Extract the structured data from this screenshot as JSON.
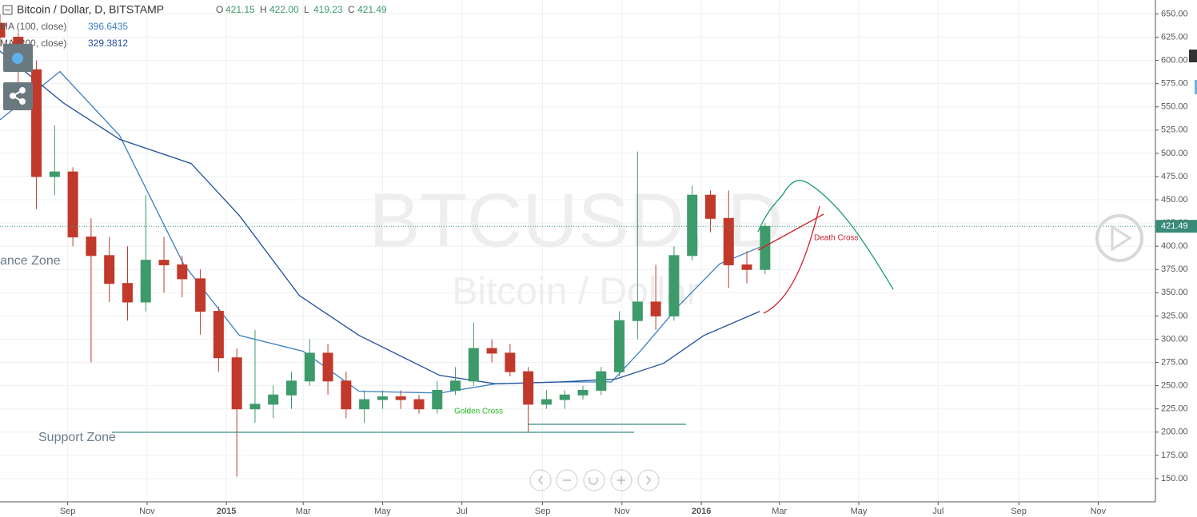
{
  "chart_data": {
    "type": "candlestick",
    "title": "Bitcoin / Dollar, D, BITSTAMP",
    "quote": {
      "labels": [
        "O",
        "H",
        "L",
        "C"
      ],
      "values": [
        421.15,
        422,
        419.23,
        421.49
      ],
      "value_labels": [
        "421.15",
        "422.00",
        "419.23",
        "421.49"
      ]
    },
    "watermark": [
      "BTCUSD, D",
      "Bitcoin / Dollar"
    ],
    "annotations": [
      "ance Zone",
      "Support Zone",
      "Golden Cross",
      "Death Cross"
    ],
    "last_price": 421.49,
    "last_price_label": "421.49",
    "up_color": "#3d9a6a",
    "down_color": "#c0392b",
    "x": [
      -21,
      -7,
      7,
      21,
      35,
      49,
      63,
      77,
      91,
      105,
      119,
      133,
      147,
      161,
      175,
      189,
      203,
      217,
      231,
      245,
      259,
      273,
      287,
      301,
      315,
      329,
      343,
      357,
      371,
      385,
      399,
      413,
      427,
      441,
      455,
      469,
      483,
      497,
      511,
      525,
      539,
      553,
      567
    ],
    "open": [
      640,
      625,
      590,
      475,
      480,
      410,
      390,
      360,
      340,
      385,
      380,
      365,
      330,
      280,
      225,
      230,
      240,
      255,
      285,
      255,
      225,
      235,
      238,
      235,
      225,
      245,
      255,
      290,
      285,
      265,
      230,
      235,
      240,
      245,
      265,
      320,
      340,
      325,
      390,
      455,
      430,
      380,
      375
    ],
    "high": [
      650,
      630,
      600,
      530,
      485,
      430,
      410,
      400,
      455,
      410,
      390,
      375,
      335,
      290,
      310,
      250,
      265,
      300,
      295,
      265,
      245,
      245,
      245,
      240,
      255,
      270,
      318,
      300,
      295,
      270,
      245,
      245,
      250,
      270,
      330,
      502,
      380,
      400,
      465,
      460,
      460,
      395,
      425
    ],
    "low": [
      615,
      575,
      440,
      455,
      400,
      275,
      340,
      320,
      330,
      350,
      345,
      305,
      265,
      152,
      210,
      215,
      225,
      250,
      240,
      215,
      210,
      225,
      225,
      220,
      220,
      240,
      250,
      275,
      260,
      200,
      225,
      225,
      235,
      240,
      260,
      300,
      310,
      320,
      385,
      415,
      355,
      360,
      370
    ],
    "close": [
      625,
      590,
      475,
      480,
      410,
      390,
      360,
      340,
      385,
      380,
      365,
      330,
      280,
      225,
      230,
      240,
      255,
      285,
      255,
      225,
      235,
      238,
      235,
      225,
      245,
      255,
      290,
      285,
      265,
      230,
      235,
      240,
      245,
      265,
      320,
      340,
      325,
      390,
      455,
      430,
      380,
      375,
      421.49
    ],
    "series": [
      {
        "name": "MA (100, close)",
        "color": "#3a7fc1",
        "last": 396.6435,
        "x": [
          -21,
          25,
          71,
          120,
          163,
          212,
          255,
          317,
          360,
          409,
          449,
          471,
          502,
          532,
          563
        ],
        "values": [
          536,
          588,
          519,
          381,
          304,
          287,
          244,
          242,
          252,
          254,
          254,
          287,
          338,
          381,
          399
        ]
      },
      {
        "name": "MA (200, close)",
        "color": "#1f4f9a",
        "last": 329.3812,
        "x": [
          -21,
          28,
          71,
          126,
          163,
          209,
          255,
          317,
          360,
          409,
          452,
          489,
          520,
          563
        ],
        "values": [
          610,
          554,
          515,
          489,
          433,
          347,
          304,
          261,
          252,
          254,
          257,
          274,
          304,
          330
        ]
      }
    ],
    "xlim": [
      -21,
      867
    ],
    "ylim": [
      125,
      665
    ],
    "xticks": [
      {
        "value": 31,
        "label": "Sep"
      },
      {
        "value": 92,
        "label": "Nov"
      },
      {
        "value": 153,
        "label": "2015"
      },
      {
        "value": 212,
        "label": "Mar"
      },
      {
        "value": 273,
        "label": "May"
      },
      {
        "value": 334,
        "label": "Jul"
      },
      {
        "value": 396,
        "label": "Sep"
      },
      {
        "value": 457,
        "label": "Nov"
      },
      {
        "value": 518,
        "label": "2016"
      },
      {
        "value": 578,
        "label": "Mar"
      },
      {
        "value": 639,
        "label": "May"
      },
      {
        "value": 700,
        "label": "Jul"
      },
      {
        "value": 762,
        "label": "Sep"
      },
      {
        "value": 823,
        "label": "Nov"
      }
    ],
    "yticks": [
      {
        "value": 150,
        "label": "150.00"
      },
      {
        "value": 175,
        "label": "175.00"
      },
      {
        "value": 200,
        "label": "200.00"
      },
      {
        "value": 225,
        "label": "225.00"
      },
      {
        "value": 250,
        "label": "250.00"
      },
      {
        "value": 275,
        "label": "275.00"
      },
      {
        "value": 300,
        "label": "300.00"
      },
      {
        "value": 325,
        "label": "325.00"
      },
      {
        "value": 350,
        "label": "350.00"
      },
      {
        "value": 375,
        "label": "375.00"
      },
      {
        "value": 400,
        "label": "400.00"
      },
      {
        "value": 425,
        "label": "425.00"
      },
      {
        "value": 450,
        "label": "450.00"
      },
      {
        "value": 475,
        "label": "475.00"
      },
      {
        "value": 500,
        "label": "500.00"
      },
      {
        "value": 525,
        "label": "525.00"
      },
      {
        "value": 550,
        "label": "550.00"
      },
      {
        "value": 575,
        "label": "575.00"
      },
      {
        "value": 600,
        "label": "600.00"
      },
      {
        "value": 625,
        "label": "625.00"
      },
      {
        "value": 650,
        "label": "650.00"
      }
    ],
    "grid": true
  }
}
